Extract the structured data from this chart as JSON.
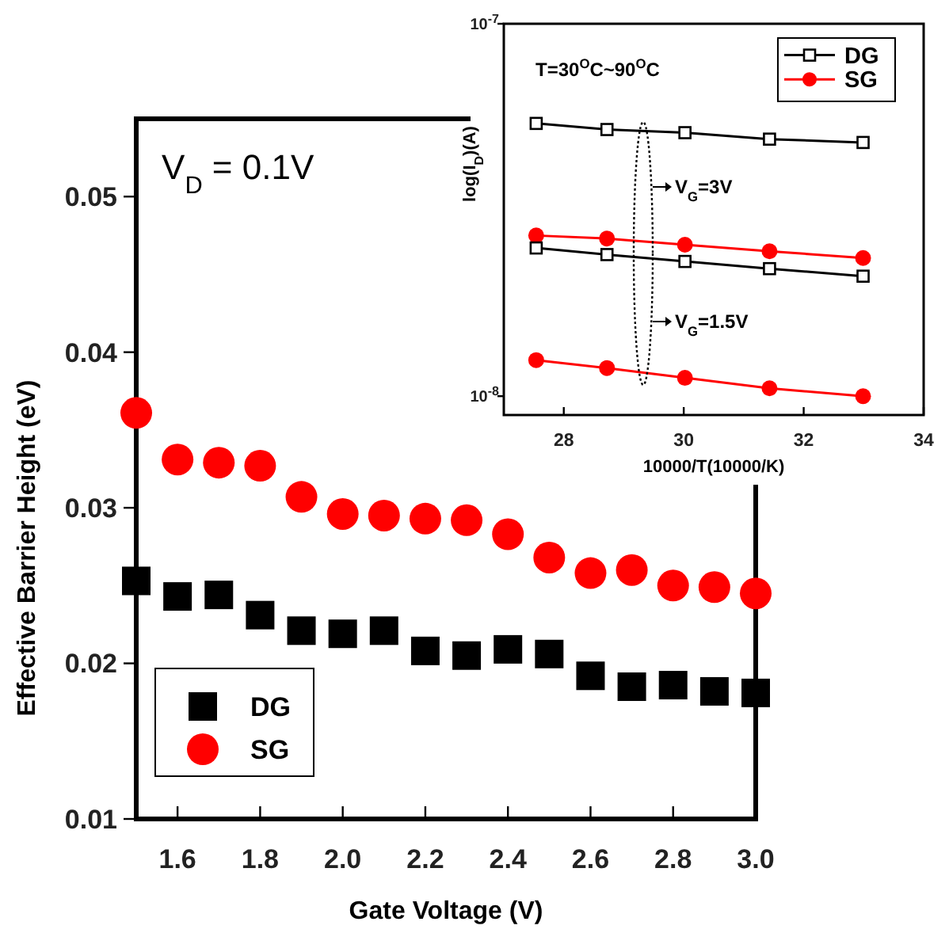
{
  "chart_data": [
    {
      "type": "scatter",
      "xlabel": "Gate Voltage (V)",
      "ylabel": "Effective Barrier Height (eV)",
      "annotations": [
        "V$_{D}$ = 0.1V"
      ],
      "x": [
        1.5,
        1.6,
        1.7,
        1.8,
        1.9,
        2.0,
        2.1,
        2.2,
        2.3,
        2.4,
        2.5,
        2.6,
        2.7,
        2.8,
        2.9,
        3.0
      ],
      "series": [
        {
          "name": "DG",
          "color": "#000000",
          "marker": "square",
          "values": [
            0.0253,
            0.0243,
            0.0244,
            0.0231,
            0.0221,
            0.0219,
            0.0221,
            0.0208,
            0.0205,
            0.0209,
            0.0206,
            0.0192,
            0.0185,
            0.0186,
            0.0182,
            0.0181
          ]
        },
        {
          "name": "SG",
          "color": "#ff0000",
          "marker": "circle",
          "values": [
            0.0361,
            0.0331,
            0.0329,
            0.0327,
            0.0307,
            0.0296,
            0.0295,
            0.0293,
            0.0292,
            0.0283,
            0.0268,
            0.0258,
            0.026,
            0.025,
            0.0249,
            0.0245
          ]
        }
      ],
      "xlim": [
        1.5,
        3.0
      ],
      "xticks": [
        {
          "value": 1.6,
          "label": "1.6"
        },
        {
          "value": 1.8,
          "label": "1.8"
        },
        {
          "value": 2.0,
          "label": "2.0"
        },
        {
          "value": 2.2,
          "label": "2.2"
        },
        {
          "value": 2.4,
          "label": "2.4"
        },
        {
          "value": 2.6,
          "label": "2.6"
        },
        {
          "value": 2.8,
          "label": "2.8"
        },
        {
          "value": 3.0,
          "label": "3.0"
        }
      ],
      "ylim": [
        0.01,
        0.055
      ],
      "yticks": [
        0.01,
        0.02,
        0.03,
        0.04,
        0.05
      ],
      "grid": false,
      "legend": "bottom left"
    },
    {
      "type": "line",
      "xlabel": "10000/T(10000/K)",
      "ylabel": "log(I$_{D}$)(A)",
      "annotations": [
        "T=30$^{O}$C~90$^{O}$C",
        "V$_{G}$=3V",
        "V$_{G}$=1.5V"
      ],
      "x": [
        27.54,
        28.72,
        30.02,
        31.43,
        32.99
      ],
      "series": [
        {
          "name": "DG",
          "color": "#000000",
          "marker": "square",
          "values": [
            5.4e-08,
            5.2e-08,
            5.1e-08,
            4.9e-08,
            4.8e-08
          ]
        },
        {
          "name": "SG",
          "color": "#ff0000",
          "marker": "circle",
          "values": [
            2.7e-08,
            2.65e-08,
            2.55e-08,
            2.45e-08,
            2.35e-08
          ]
        },
        {
          "color": "#000000",
          "marker": "square",
          "values": [
            2.5e-08,
            2.4e-08,
            2.3e-08,
            2.2e-08,
            2.1e-08
          ]
        },
        {
          "color": "#ff0000",
          "marker": "circle",
          "values": [
            1.25e-08,
            1.19e-08,
            1.12e-08,
            1.05e-08,
            1e-08
          ]
        }
      ],
      "log": "y",
      "xlim": [
        27,
        34
      ],
      "xticks": [
        28,
        30,
        32,
        34
      ],
      "ylim": [
        8.9e-09,
        1e-07
      ],
      "yticks": [
        {
          "value": 1e-07,
          "label": "10$^{-7}$"
        },
        {
          "value": 1e-08,
          "label": "10$^{-8}$"
        }
      ],
      "grid": false,
      "legend": "top right",
      "line_style": "solid"
    }
  ]
}
